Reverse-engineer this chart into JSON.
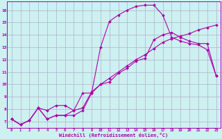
{
  "background_color": "#cdf0f0",
  "grid_color": "#b0b0cc",
  "line_color": "#aa00aa",
  "xlim": [
    -0.5,
    23.5
  ],
  "ylim": [
    6.5,
    16.7
  ],
  "xticks": [
    0,
    1,
    2,
    3,
    4,
    5,
    6,
    7,
    8,
    9,
    10,
    11,
    12,
    13,
    14,
    15,
    16,
    17,
    18,
    19,
    20,
    21,
    22,
    23
  ],
  "yticks": [
    7,
    8,
    9,
    10,
    11,
    12,
    13,
    14,
    15,
    16
  ],
  "xlabel": "Windchill (Refroidissement éolien,°C)",
  "curve1_x": [
    0,
    1,
    2,
    3,
    4,
    5,
    6,
    7,
    8,
    9,
    10,
    11,
    12,
    13,
    14,
    15,
    16,
    17,
    18,
    19,
    20,
    21,
    22,
    23
  ],
  "curve1_y": [
    7.2,
    6.75,
    7.1,
    8.1,
    7.2,
    7.5,
    7.5,
    7.5,
    7.9,
    9.3,
    10.0,
    10.5,
    11.0,
    11.5,
    12.0,
    12.4,
    12.9,
    13.4,
    13.7,
    13.9,
    14.1,
    14.4,
    14.6,
    14.8
  ],
  "curve2_x": [
    0,
    1,
    2,
    3,
    4,
    5,
    6,
    7,
    8,
    9,
    10,
    11,
    12,
    13,
    14,
    15,
    16,
    17,
    18,
    19,
    20,
    21,
    22,
    23
  ],
  "curve2_y": [
    7.2,
    6.75,
    7.1,
    8.1,
    7.2,
    7.5,
    7.5,
    7.9,
    9.3,
    9.3,
    13.0,
    15.1,
    15.6,
    16.0,
    16.3,
    16.4,
    16.4,
    15.6,
    13.8,
    13.5,
    13.3,
    13.2,
    12.8,
    10.7
  ],
  "curve3_x": [
    0,
    1,
    2,
    3,
    4,
    5,
    6,
    7,
    8,
    9,
    10,
    11,
    12,
    13,
    14,
    15,
    16,
    17,
    18,
    19,
    20,
    21,
    22,
    23
  ],
  "curve3_y": [
    7.2,
    6.75,
    7.1,
    8.1,
    7.9,
    8.3,
    8.3,
    7.9,
    8.1,
    9.4,
    10.0,
    10.2,
    10.9,
    11.3,
    11.9,
    12.1,
    13.6,
    14.0,
    14.2,
    13.8,
    13.5,
    13.3,
    13.3,
    10.7
  ]
}
